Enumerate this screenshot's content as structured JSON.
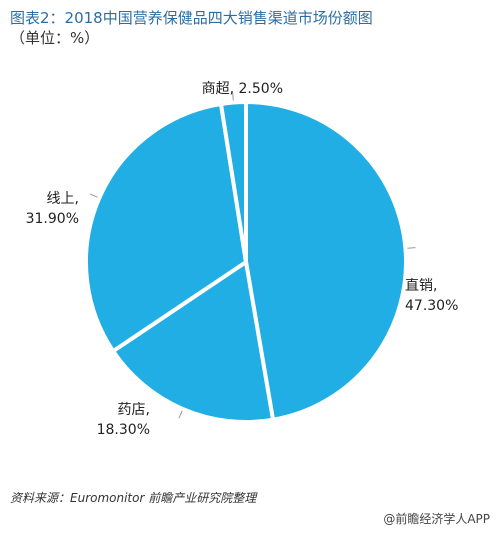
{
  "header": {
    "title": "图表2：2018中国营养保健品四大销售渠道市场份额图",
    "subtitle": "（单位：%）"
  },
  "chart_data": {
    "type": "pie",
    "categories": [
      "直销",
      "药店",
      "线上",
      "商超"
    ],
    "values": [
      47.3,
      18.3,
      31.9,
      2.5
    ],
    "labels": [
      "直销,\n47.30%",
      "药店,\n18.30%",
      "线上,\n31.90%",
      "商超, 2.50%"
    ],
    "colors": [
      "#20aee4",
      "#20aee4",
      "#20aee4",
      "#20aee4"
    ],
    "slice_stroke": "#ffffff",
    "legend": "none"
  },
  "footer": {
    "source": "资料来源：Euromonitor 前瞻产业研究院整理",
    "brand": "@前瞻经济学人APP"
  }
}
